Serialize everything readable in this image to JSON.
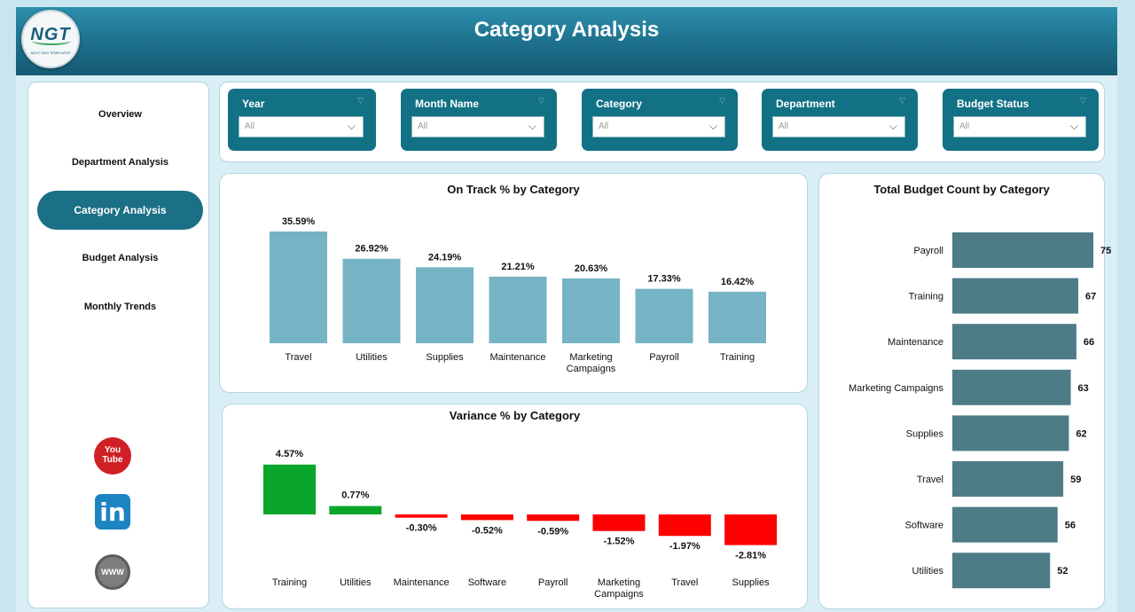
{
  "header": {
    "title": "Category Analysis",
    "logo_text": "NGT",
    "logo_sub": "NEXT GEN TEMPLATES"
  },
  "sidebar": {
    "items": [
      {
        "label": "Overview",
        "active": false
      },
      {
        "label": "Department Analysis",
        "active": false
      },
      {
        "label": "Category Analysis",
        "active": true
      },
      {
        "label": "Budget Analysis",
        "active": false
      },
      {
        "label": "Monthly Trends",
        "active": false
      }
    ],
    "social": {
      "youtube": "You Tube",
      "linkedin": "in",
      "www": "WWW"
    }
  },
  "filters": [
    {
      "label": "Year",
      "value": "All"
    },
    {
      "label": "Month Name",
      "value": "All"
    },
    {
      "label": "Category",
      "value": "All"
    },
    {
      "label": "Department",
      "value": "All"
    },
    {
      "label": "Budget Status",
      "value": "All"
    }
  ],
  "colors": {
    "ontrack_bar": "#76b3c5",
    "budget_bar": "#4d7c87",
    "positive": "#0aa62b",
    "negative": "#ff0000",
    "accent": "#1b6f86"
  },
  "chart_data": [
    {
      "id": "ontrack",
      "type": "bar",
      "title": "On Track % by Category",
      "categories": [
        "Travel",
        "Utilities",
        "Supplies",
        "Maintenance",
        "Marketing Campaigns",
        "Payroll",
        "Training"
      ],
      "values": [
        35.59,
        26.92,
        24.19,
        21.21,
        20.63,
        17.33,
        16.42
      ],
      "labels": [
        "35.59%",
        "26.92%",
        "24.19%",
        "21.21%",
        "20.63%",
        "17.33%",
        "16.42%"
      ]
    },
    {
      "id": "variance",
      "type": "bar",
      "title": "Variance % by Category",
      "categories": [
        "Training",
        "Utilities",
        "Maintenance",
        "Software",
        "Payroll",
        "Marketing Campaigns",
        "Travel",
        "Supplies"
      ],
      "values": [
        4.57,
        0.77,
        -0.3,
        -0.52,
        -0.59,
        -1.52,
        -1.97,
        -2.81
      ],
      "labels": [
        "4.57%",
        "0.77%",
        "-0.30%",
        "-0.52%",
        "-0.59%",
        "-1.52%",
        "-1.97%",
        "-2.81%"
      ]
    },
    {
      "id": "budget",
      "type": "bar",
      "orientation": "horizontal",
      "title": "Total Budget Count by Category",
      "categories": [
        "Payroll",
        "Training",
        "Maintenance",
        "Marketing Campaigns",
        "Supplies",
        "Travel",
        "Software",
        "Utilities"
      ],
      "values": [
        75,
        67,
        66,
        63,
        62,
        59,
        56,
        52
      ],
      "labels": [
        "75",
        "67",
        "66",
        "63",
        "62",
        "59",
        "56",
        "52"
      ]
    }
  ]
}
